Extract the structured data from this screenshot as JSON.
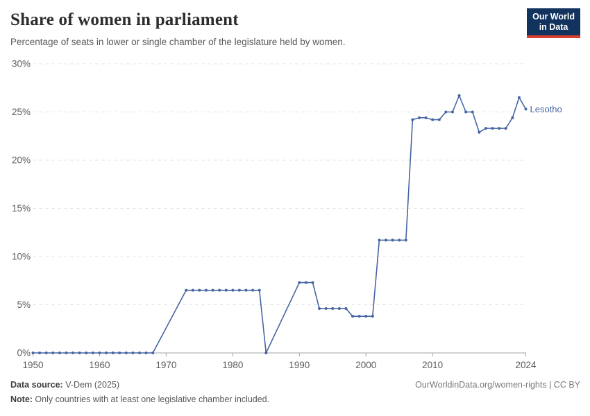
{
  "header": {
    "title": "Share of women in parliament",
    "subtitle": "Percentage of seats in lower or single chamber of the legislature held by women.",
    "logo": {
      "line1": "Our World",
      "line2": "in Data"
    }
  },
  "chart_data": {
    "type": "line",
    "title": "Share of women in parliament",
    "xlabel": "",
    "ylabel": "",
    "xlim": [
      1950,
      2024
    ],
    "ylim": [
      0,
      30
    ],
    "grid": "horizontal-dashed",
    "legend_position": "end-of-line-label",
    "x_ticks": [
      {
        "value": 1950,
        "label": "1950"
      },
      {
        "value": 1960,
        "label": "1960"
      },
      {
        "value": 1970,
        "label": "1970"
      },
      {
        "value": 1980,
        "label": "1980"
      },
      {
        "value": 1990,
        "label": "1990"
      },
      {
        "value": 2000,
        "label": "2000"
      },
      {
        "value": 2010,
        "label": "2010"
      },
      {
        "value": 2024,
        "label": "2024"
      }
    ],
    "y_ticks": [
      {
        "value": 0,
        "label": "0%"
      },
      {
        "value": 5,
        "label": "5%"
      },
      {
        "value": 10,
        "label": "10%"
      },
      {
        "value": 15,
        "label": "15%"
      },
      {
        "value": 20,
        "label": "20%"
      },
      {
        "value": 25,
        "label": "25%"
      },
      {
        "value": 30,
        "label": "30%"
      }
    ],
    "series": [
      {
        "name": "Lesotho",
        "points": [
          [
            1950,
            0
          ],
          [
            1951,
            0
          ],
          [
            1952,
            0
          ],
          [
            1953,
            0
          ],
          [
            1954,
            0
          ],
          [
            1955,
            0
          ],
          [
            1956,
            0
          ],
          [
            1957,
            0
          ],
          [
            1958,
            0
          ],
          [
            1959,
            0
          ],
          [
            1960,
            0
          ],
          [
            1961,
            0
          ],
          [
            1962,
            0
          ],
          [
            1963,
            0
          ],
          [
            1964,
            0
          ],
          [
            1965,
            0
          ],
          [
            1966,
            0
          ],
          [
            1967,
            0
          ],
          [
            1968,
            0
          ],
          [
            1973,
            6.5
          ],
          [
            1974,
            6.5
          ],
          [
            1975,
            6.5
          ],
          [
            1976,
            6.5
          ],
          [
            1977,
            6.5
          ],
          [
            1978,
            6.5
          ],
          [
            1979,
            6.5
          ],
          [
            1980,
            6.5
          ],
          [
            1981,
            6.5
          ],
          [
            1982,
            6.5
          ],
          [
            1983,
            6.5
          ],
          [
            1984,
            6.5
          ],
          [
            1985,
            0
          ],
          [
            1990,
            7.3
          ],
          [
            1991,
            7.3
          ],
          [
            1992,
            7.3
          ],
          [
            1993,
            4.6
          ],
          [
            1994,
            4.6
          ],
          [
            1995,
            4.6
          ],
          [
            1996,
            4.6
          ],
          [
            1997,
            4.6
          ],
          [
            1998,
            3.8
          ],
          [
            1999,
            3.8
          ],
          [
            2000,
            3.8
          ],
          [
            2001,
            3.8
          ],
          [
            2002,
            11.7
          ],
          [
            2003,
            11.7
          ],
          [
            2004,
            11.7
          ],
          [
            2005,
            11.7
          ],
          [
            2006,
            11.7
          ],
          [
            2007,
            24.2
          ],
          [
            2008,
            24.4
          ],
          [
            2009,
            24.4
          ],
          [
            2010,
            24.2
          ],
          [
            2011,
            24.2
          ],
          [
            2012,
            25
          ],
          [
            2013,
            25
          ],
          [
            2014,
            26.7
          ],
          [
            2015,
            25
          ],
          [
            2016,
            25
          ],
          [
            2017,
            22.9
          ],
          [
            2018,
            23.3
          ],
          [
            2019,
            23.3
          ],
          [
            2020,
            23.3
          ],
          [
            2021,
            23.3
          ],
          [
            2022,
            24.4
          ],
          [
            2023,
            26.5
          ],
          [
            2024,
            25.3
          ]
        ]
      }
    ]
  },
  "footer": {
    "data_source_label": "Data source:",
    "data_source_value": " V-Dem (2025)",
    "note_label": "Note:",
    "note_value": " Only countries with at least one legislative chamber included.",
    "link_text": "OurWorldinData.org/women-rights | CC BY"
  },
  "colors": {
    "line": "#4665a2",
    "grid": "#e0e0e0",
    "axis": "#a3a3a3",
    "tick_label": "#5b5b5b",
    "title_color": "#2d2d2d",
    "subtitle_color": "#595959",
    "logo_bg": "#12335d",
    "logo_red": "#dc3d2f",
    "footer_color": "#58585a",
    "footer_bold_color": "#3f3f3f",
    "footer_right_color": "#77787a"
  }
}
